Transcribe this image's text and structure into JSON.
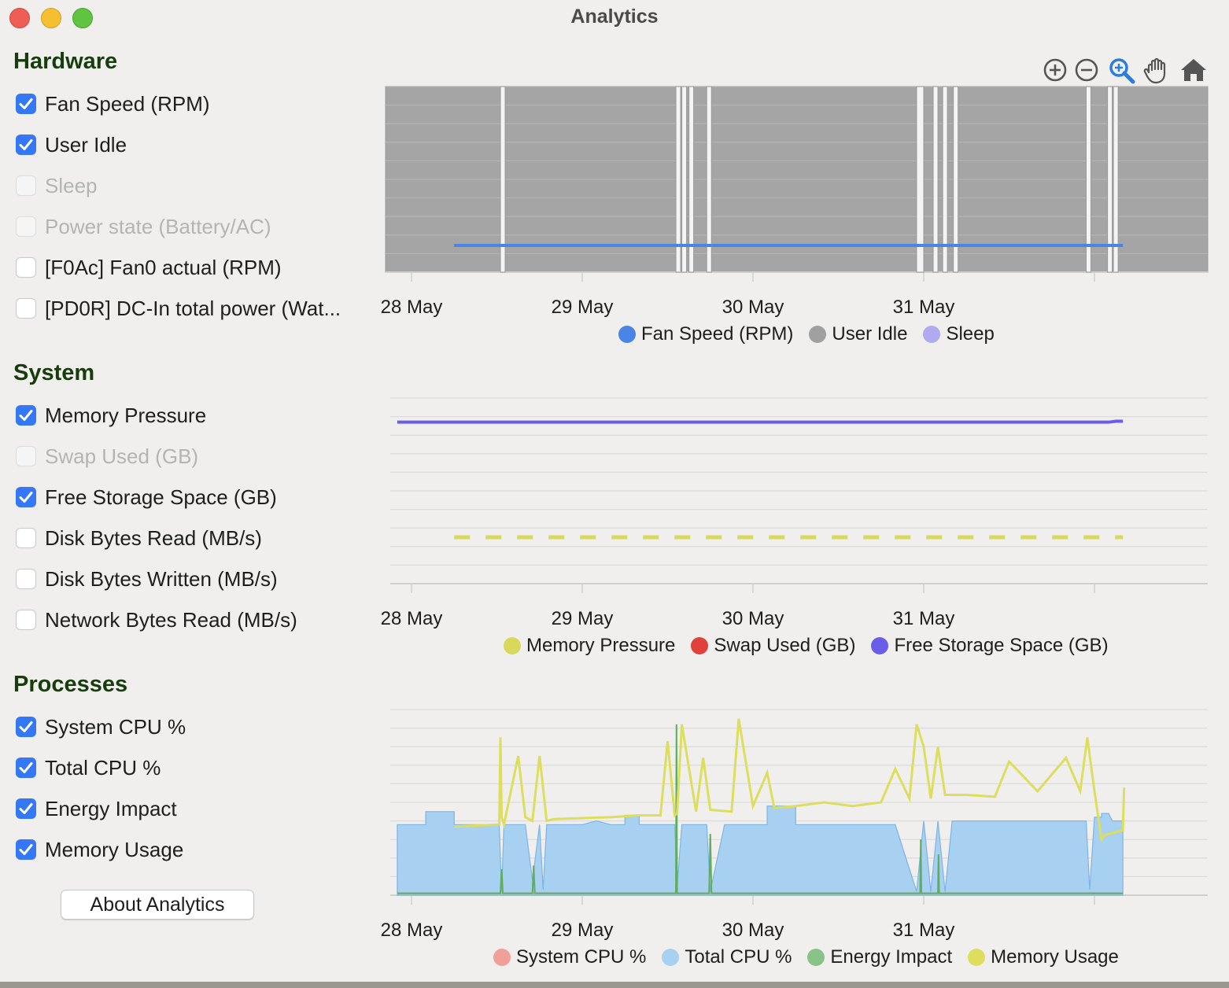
{
  "window": {
    "title": "Analytics"
  },
  "sidebar": {
    "sections": [
      {
        "title": "Hardware",
        "items": [
          {
            "label": "Fan Speed (RPM)",
            "state": "checked"
          },
          {
            "label": "User Idle",
            "state": "checked"
          },
          {
            "label": "Sleep",
            "state": "disabled"
          },
          {
            "label": "Power state (Battery/AC)",
            "state": "disabled"
          },
          {
            "label": "[F0Ac] Fan0 actual (RPM)",
            "state": "unchecked"
          },
          {
            "label": "[PD0R] DC-In total power (Wat...",
            "state": "unchecked"
          }
        ]
      },
      {
        "title": "System",
        "items": [
          {
            "label": "Memory Pressure",
            "state": "checked"
          },
          {
            "label": "Swap Used (GB)",
            "state": "disabled"
          },
          {
            "label": "Free Storage Space (GB)",
            "state": "checked"
          },
          {
            "label": "Disk Bytes Read (MB/s)",
            "state": "unchecked"
          },
          {
            "label": "Disk Bytes Written (MB/s)",
            "state": "unchecked"
          },
          {
            "label": "Network Bytes Read (MB/s)",
            "state": "unchecked"
          }
        ]
      },
      {
        "title": "Processes",
        "items": [
          {
            "label": "System CPU %",
            "state": "checked"
          },
          {
            "label": "Total CPU %",
            "state": "checked"
          },
          {
            "label": "Energy Impact",
            "state": "checked"
          },
          {
            "label": "Memory Usage",
            "state": "checked"
          }
        ]
      }
    ],
    "about_button": "About Analytics"
  },
  "toolbar": {
    "icons": [
      "zoom-in-icon",
      "zoom-out-icon",
      "zoom-magnifier-icon",
      "pan-hand-icon",
      "home-icon"
    ]
  },
  "colors": {
    "fan_speed": "#4a84e4",
    "user_idle": "#a0a0a0",
    "sleep": "#b0aaf0",
    "memory_pressure": "#d8d85a",
    "swap_used": "#e0413a",
    "free_storage": "#6a5ee8",
    "system_cpu": "#f0a096",
    "total_cpu": "#a8d0f0",
    "energy_impact": "#88c488",
    "memory_usage": "#dede5e"
  },
  "chart_data": [
    {
      "type": "area",
      "x_ticks": [
        "28 May",
        "29 May",
        "30 May",
        "31 May"
      ],
      "legend": [
        "Fan Speed (RPM)",
        "User Idle",
        "Sleep"
      ],
      "series": [
        {
          "name": "Fan Speed (RPM)",
          "x": [
            "28 May 06:00",
            "01 Jun 04:00"
          ],
          "y": [
            1,
            1
          ]
        },
        {
          "name": "User Idle",
          "shape": "on/off bands",
          "off_intervals": [
            [
              "28 May 12:30",
              "28 May 13:00"
            ],
            [
              "29 May 13:10",
              "29 May 13:20"
            ],
            [
              "29 May 14:00",
              "29 May 14:20"
            ],
            [
              "29 May 15:00",
              "29 May 15:30"
            ],
            [
              "29 May 17:30",
              "29 May 18:10"
            ],
            [
              "30 May 23:00",
              "31 May 00:00"
            ],
            [
              "31 May 01:20",
              "31 May 01:40"
            ],
            [
              "31 May 02:40",
              "31 May 03:10"
            ],
            [
              "31 May 04:10",
              "31 May 04:40"
            ],
            [
              "31 May 22:50",
              "31 May 23:20"
            ],
            [
              "01 Jun 01:50",
              "01 Jun 02:10"
            ],
            [
              "01 Jun 02:40",
              "01 Jun 03:10"
            ]
          ]
        },
        {
          "name": "Sleep",
          "values": []
        }
      ],
      "grid": true,
      "legend_position": "bottom"
    },
    {
      "type": "line",
      "x_ticks": [
        "28 May",
        "29 May",
        "30 May",
        "31 May"
      ],
      "legend": [
        "Memory Pressure",
        "Swap Used (GB)",
        "Free Storage Space (GB)"
      ],
      "series": [
        {
          "name": "Memory Pressure",
          "style": "dashed",
          "x": [
            "28 May 06:00",
            "01 Jun 04:00"
          ],
          "y": [
            0.25,
            0.25
          ]
        },
        {
          "name": "Swap Used (GB)",
          "values": []
        },
        {
          "name": "Free Storage Space (GB)",
          "x": [
            "27 May 22:00",
            "01 Jun 02:00",
            "01 Jun 03:00",
            "01 Jun 04:00"
          ],
          "y": [
            0.87,
            0.87,
            0.875,
            0.875
          ]
        }
      ],
      "grid": true,
      "legend_position": "bottom"
    },
    {
      "type": "area",
      "x_ticks": [
        "28 May",
        "29 May",
        "30 May",
        "31 May"
      ],
      "legend": [
        "System CPU %",
        "Total CPU %",
        "Energy Impact",
        "Memory Usage"
      ],
      "y_range": [
        0,
        100
      ],
      "series": [
        {
          "name": "System CPU %",
          "x": [
            "27 May 22:00",
            "01 Jun 04:00"
          ],
          "y": [
            1,
            1
          ]
        },
        {
          "name": "Total CPU %",
          "x": [
            "27 May 22:00",
            "28 May 02:00",
            "28 May 02:00",
            "28 May 06:00",
            "28 May 06:00",
            "28 May 12:20",
            "28 May 12:40",
            "28 May 13:00",
            "28 May 14:00",
            "28 May 15:00",
            "28 May 16:00",
            "28 May 17:00",
            "28 May 18:00",
            "28 May 18:30",
            "28 May 19:00",
            "28 May 20:00",
            "28 May 22:00",
            "29 May 00:00",
            "29 May 02:00",
            "29 May 04:00",
            "29 May 06:00",
            "29 May 06:00",
            "29 May 08:00",
            "29 May 08:00",
            "29 May 10:00",
            "29 May 12:00",
            "29 May 13:00",
            "29 May 13:20",
            "29 May 14:00",
            "29 May 16:00",
            "29 May 17:30",
            "29 May 18:00",
            "29 May 20:00",
            "29 May 22:00",
            "30 May 00:00",
            "30 May 02:00",
            "30 May 02:00",
            "30 May 06:00",
            "30 May 06:00",
            "30 May 08:00",
            "30 May 10:00",
            "30 May 12:00",
            "30 May 16:00",
            "30 May 20:00",
            "30 May 23:00",
            "31 May 00:00",
            "31 May 01:00",
            "31 May 02:00",
            "31 May 03:00",
            "31 May 04:00",
            "31 May 06:00",
            "31 May 08:00",
            "31 May 10:00",
            "31 May 12:00",
            "31 May 14:00",
            "31 May 16:00",
            "31 May 18:00",
            "31 May 20:00",
            "31 May 22:50",
            "31 May 23:20",
            "01 Jun 00:00",
            "01 Jun 01:00",
            "01 Jun 01:00",
            "01 Jun 02:00",
            "01 Jun 02:30",
            "01 Jun 03:00",
            "01 Jun 04:00"
          ],
          "y": [
            38,
            38,
            45,
            45,
            38,
            38,
            2,
            38,
            38,
            38,
            38,
            8,
            38,
            3,
            38,
            38,
            38,
            38,
            40,
            38,
            38,
            43,
            43,
            38,
            38,
            38,
            38,
            4,
            38,
            38,
            38,
            2,
            38,
            38,
            38,
            38,
            48,
            48,
            38,
            38,
            38,
            38,
            38,
            38,
            2,
            40,
            2,
            40,
            2,
            40,
            40,
            40,
            40,
            40,
            40,
            40,
            40,
            40,
            40,
            3,
            42,
            42,
            44,
            44,
            40,
            40,
            40
          ]
        },
        {
          "name": "Energy Impact",
          "x": [
            "27 May 22:00",
            "28 May 12:30",
            "28 May 12:40",
            "28 May 12:50",
            "28 May 17:00",
            "28 May 17:10",
            "28 May 17:20",
            "29 May 13:10",
            "29 May 13:15",
            "29 May 13:20",
            "29 May 17:50",
            "29 May 18:00",
            "29 May 18:10",
            "30 May 23:30",
            "30 May 23:35",
            "30 May 23:40",
            "31 May 02:00",
            "31 May 02:05",
            "31 May 02:10",
            "01 Jun 00:00",
            "01 Jun 04:00"
          ],
          "y": [
            1,
            1,
            14,
            1,
            1,
            16,
            1,
            1,
            92,
            1,
            1,
            33,
            1,
            1,
            30,
            1,
            1,
            22,
            1,
            1,
            1
          ]
        },
        {
          "name": "Memory Usage",
          "x": [
            "28 May 06:00",
            "28 May 12:00",
            "28 May 12:20",
            "28 May 12:30",
            "28 May 12:40",
            "28 May 13:00",
            "28 May 15:00",
            "28 May 16:00",
            "28 May 17:00",
            "28 May 18:00",
            "28 May 19:00",
            "28 May 20:00",
            "29 May 04:00",
            "29 May 08:00",
            "29 May 11:00",
            "29 May 12:00",
            "29 May 13:00",
            "29 May 13:20",
            "29 May 14:00",
            "29 May 16:00",
            "29 May 17:00",
            "29 May 18:00",
            "29 May 21:00",
            "29 May 22:00",
            "30 May 00:00",
            "30 May 02:00",
            "30 May 03:00",
            "30 May 06:00",
            "30 May 10:00",
            "30 May 14:00",
            "30 May 18:00",
            "30 May 20:00",
            "30 May 22:00",
            "30 May 23:00",
            "31 May 00:00",
            "31 May 01:00",
            "31 May 02:00",
            "31 May 03:00",
            "31 May 06:00",
            "31 May 10:00",
            "31 May 12:00",
            "31 May 16:00",
            "31 May 20:00",
            "31 May 22:00",
            "31 May 23:00",
            "01 Jun 00:00",
            "01 Jun 01:00",
            "01 Jun 01:20",
            "01 Jun 02:00",
            "01 Jun 04:00",
            "01 Jun 04:10"
          ],
          "y": [
            37,
            38,
            38,
            85,
            42,
            38,
            75,
            42,
            40,
            75,
            40,
            41,
            42,
            43,
            43,
            83,
            43,
            44,
            92,
            45,
            74,
            46,
            45,
            95,
            48,
            66,
            47,
            48,
            50,
            48,
            50,
            68,
            52,
            92,
            80,
            52,
            80,
            54,
            54,
            53,
            72,
            56,
            74,
            56,
            85,
            56,
            30,
            32,
            33,
            35,
            58
          ]
        }
      ],
      "grid": true,
      "legend_position": "bottom"
    }
  ]
}
